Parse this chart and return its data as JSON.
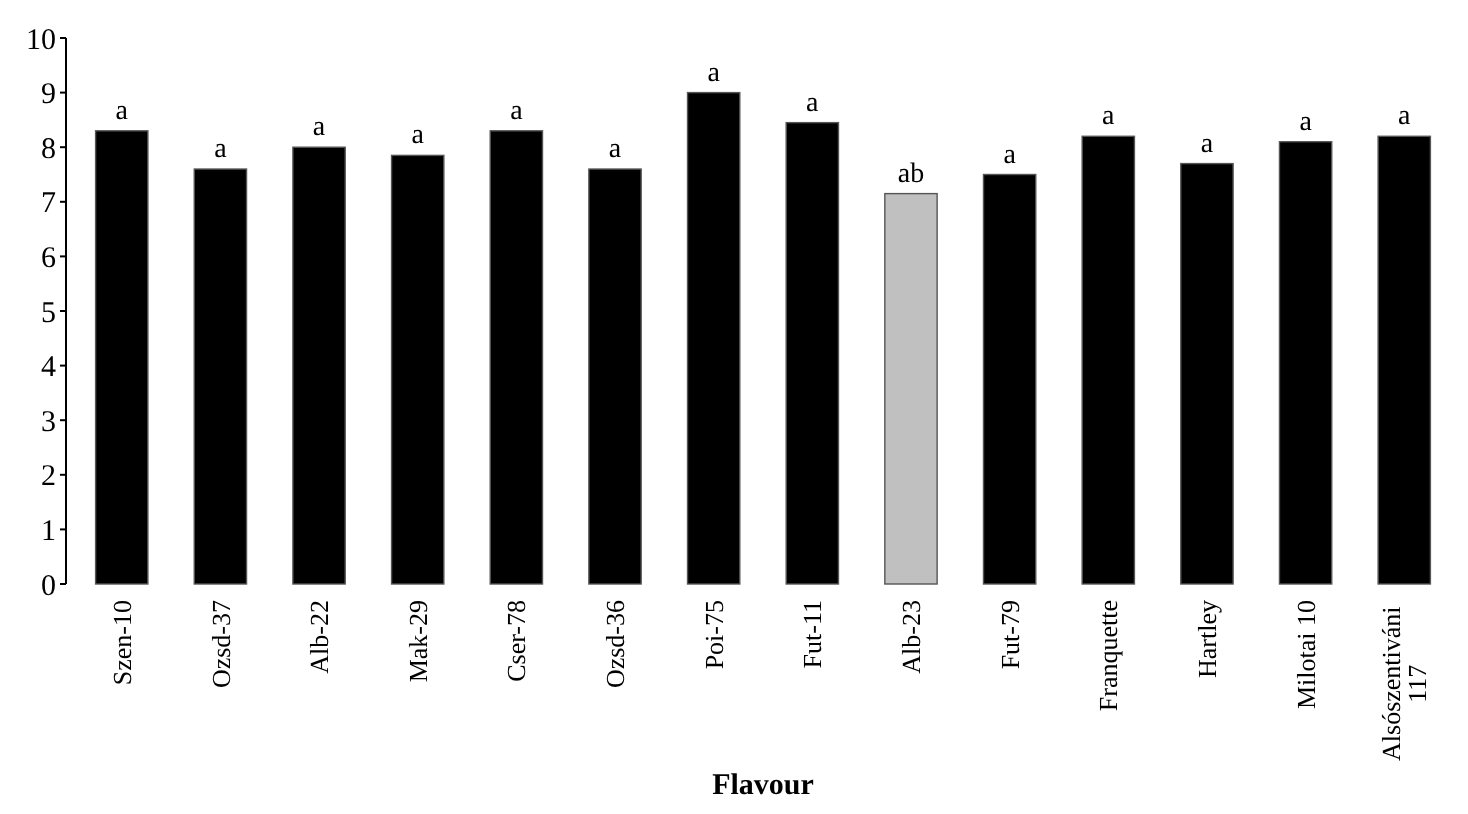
{
  "chart_data": {
    "type": "bar",
    "xlabel": "Flavour",
    "categories": [
      "Szen-10",
      "Ozsd-37",
      "Alb-22",
      "Mak-29",
      "Cser-78",
      "Ozsd-36",
      "Poi-75",
      "Fut-11",
      "Alb-23",
      "Fut-79",
      "Franquette",
      "Hartley",
      "Milotai 10",
      "Alsószentiváni 117"
    ],
    "values": [
      8.3,
      7.6,
      8.0,
      7.85,
      8.3,
      7.6,
      9.0,
      8.45,
      7.15,
      7.5,
      8.2,
      7.7,
      8.1,
      8.2
    ],
    "colors": [
      "#000000",
      "#000000",
      "#000000",
      "#000000",
      "#000000",
      "#000000",
      "#000000",
      "#000000",
      "#c0c0c0",
      "#000000",
      "#000000",
      "#000000",
      "#000000",
      "#000000"
    ],
    "ylim": [
      0,
      10
    ],
    "yticks": [
      0,
      1,
      2,
      3,
      4,
      5,
      6,
      7,
      8,
      9,
      10
    ],
    "grid": false,
    "annotations": [
      {
        "text": "a",
        "x": "Szen-10",
        "y": 8.3
      },
      {
        "text": "a",
        "x": "Ozsd-37",
        "y": 7.6
      },
      {
        "text": "a",
        "x": "Alb-22",
        "y": 8.0
      },
      {
        "text": "a",
        "x": "Mak-29",
        "y": 7.85
      },
      {
        "text": "a",
        "x": "Cser-78",
        "y": 8.3
      },
      {
        "text": "a",
        "x": "Ozsd-36",
        "y": 7.6
      },
      {
        "text": "a",
        "x": "Poi-75",
        "y": 9.0
      },
      {
        "text": "a",
        "x": "Fut-11",
        "y": 8.45
      },
      {
        "text": "ab",
        "x": "Alb-23",
        "y": 7.15
      },
      {
        "text": "a",
        "x": "Fut-79",
        "y": 7.5
      },
      {
        "text": "a",
        "x": "Franquette",
        "y": 8.2
      },
      {
        "text": "a",
        "x": "Hartley",
        "y": 7.7
      },
      {
        "text": "a",
        "x": "Milotai 10",
        "y": 8.1
      },
      {
        "text": "a",
        "x": "Alsószentiváni 117",
        "y": 8.2
      }
    ]
  }
}
